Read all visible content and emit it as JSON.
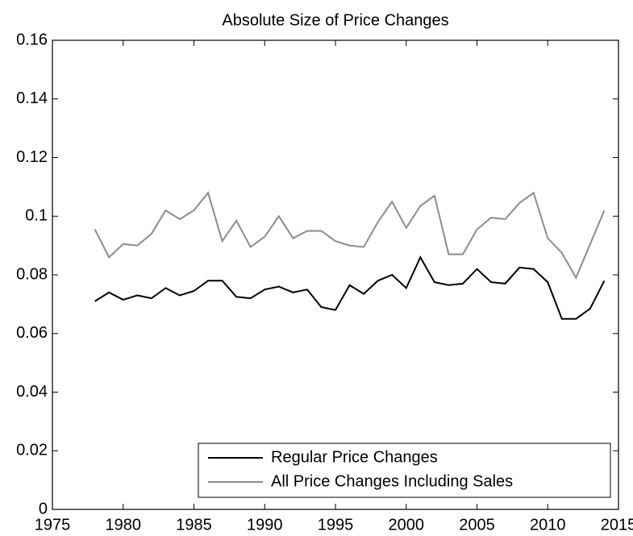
{
  "chart_data": {
    "type": "line",
    "title": "Absolute Size of Price Changes",
    "x": [
      1978,
      1979,
      1980,
      1981,
      1982,
      1983,
      1984,
      1985,
      1986,
      1987,
      1988,
      1989,
      1990,
      1991,
      1992,
      1993,
      1994,
      1995,
      1996,
      1997,
      1998,
      1999,
      2000,
      2001,
      2002,
      2003,
      2004,
      2005,
      2006,
      2007,
      2008,
      2009,
      2010,
      2011,
      2012,
      2013,
      2014
    ],
    "series": [
      {
        "name": "Regular Price Changes",
        "color": "#000000",
        "values": [
          0.071,
          0.074,
          0.0715,
          0.073,
          0.072,
          0.0755,
          0.073,
          0.0745,
          0.078,
          0.078,
          0.0725,
          0.072,
          0.075,
          0.076,
          0.074,
          0.075,
          0.069,
          0.068,
          0.0765,
          0.0735,
          0.078,
          0.08,
          0.0755,
          0.086,
          0.0775,
          0.0765,
          0.077,
          0.082,
          0.0775,
          0.077,
          0.0825,
          0.082,
          0.0775,
          0.065,
          0.065,
          0.0685,
          0.078
        ]
      },
      {
        "name": "All Price Changes Including Sales",
        "color": "#8c8c8c",
        "values": [
          0.0955,
          0.086,
          0.0905,
          0.09,
          0.094,
          0.102,
          0.099,
          0.102,
          0.108,
          0.0915,
          0.0985,
          0.0895,
          0.093,
          0.1,
          0.0925,
          0.095,
          0.095,
          0.0915,
          0.09,
          0.0895,
          0.098,
          0.105,
          0.096,
          0.1035,
          0.107,
          0.087,
          0.087,
          0.0955,
          0.0995,
          0.099,
          0.1045,
          0.108,
          0.0925,
          0.0875,
          0.079,
          0.0905,
          0.102
        ]
      }
    ],
    "xlim": [
      1975,
      2015
    ],
    "xticks": [
      1975,
      1980,
      1985,
      1990,
      1995,
      2000,
      2005,
      2010,
      2015
    ],
    "ylim": [
      0,
      0.16
    ],
    "yticks": [
      0,
      0.02,
      0.04,
      0.06,
      0.08,
      0.1,
      0.12,
      0.14,
      0.16
    ],
    "legend": "lower-right",
    "grid": false
  }
}
